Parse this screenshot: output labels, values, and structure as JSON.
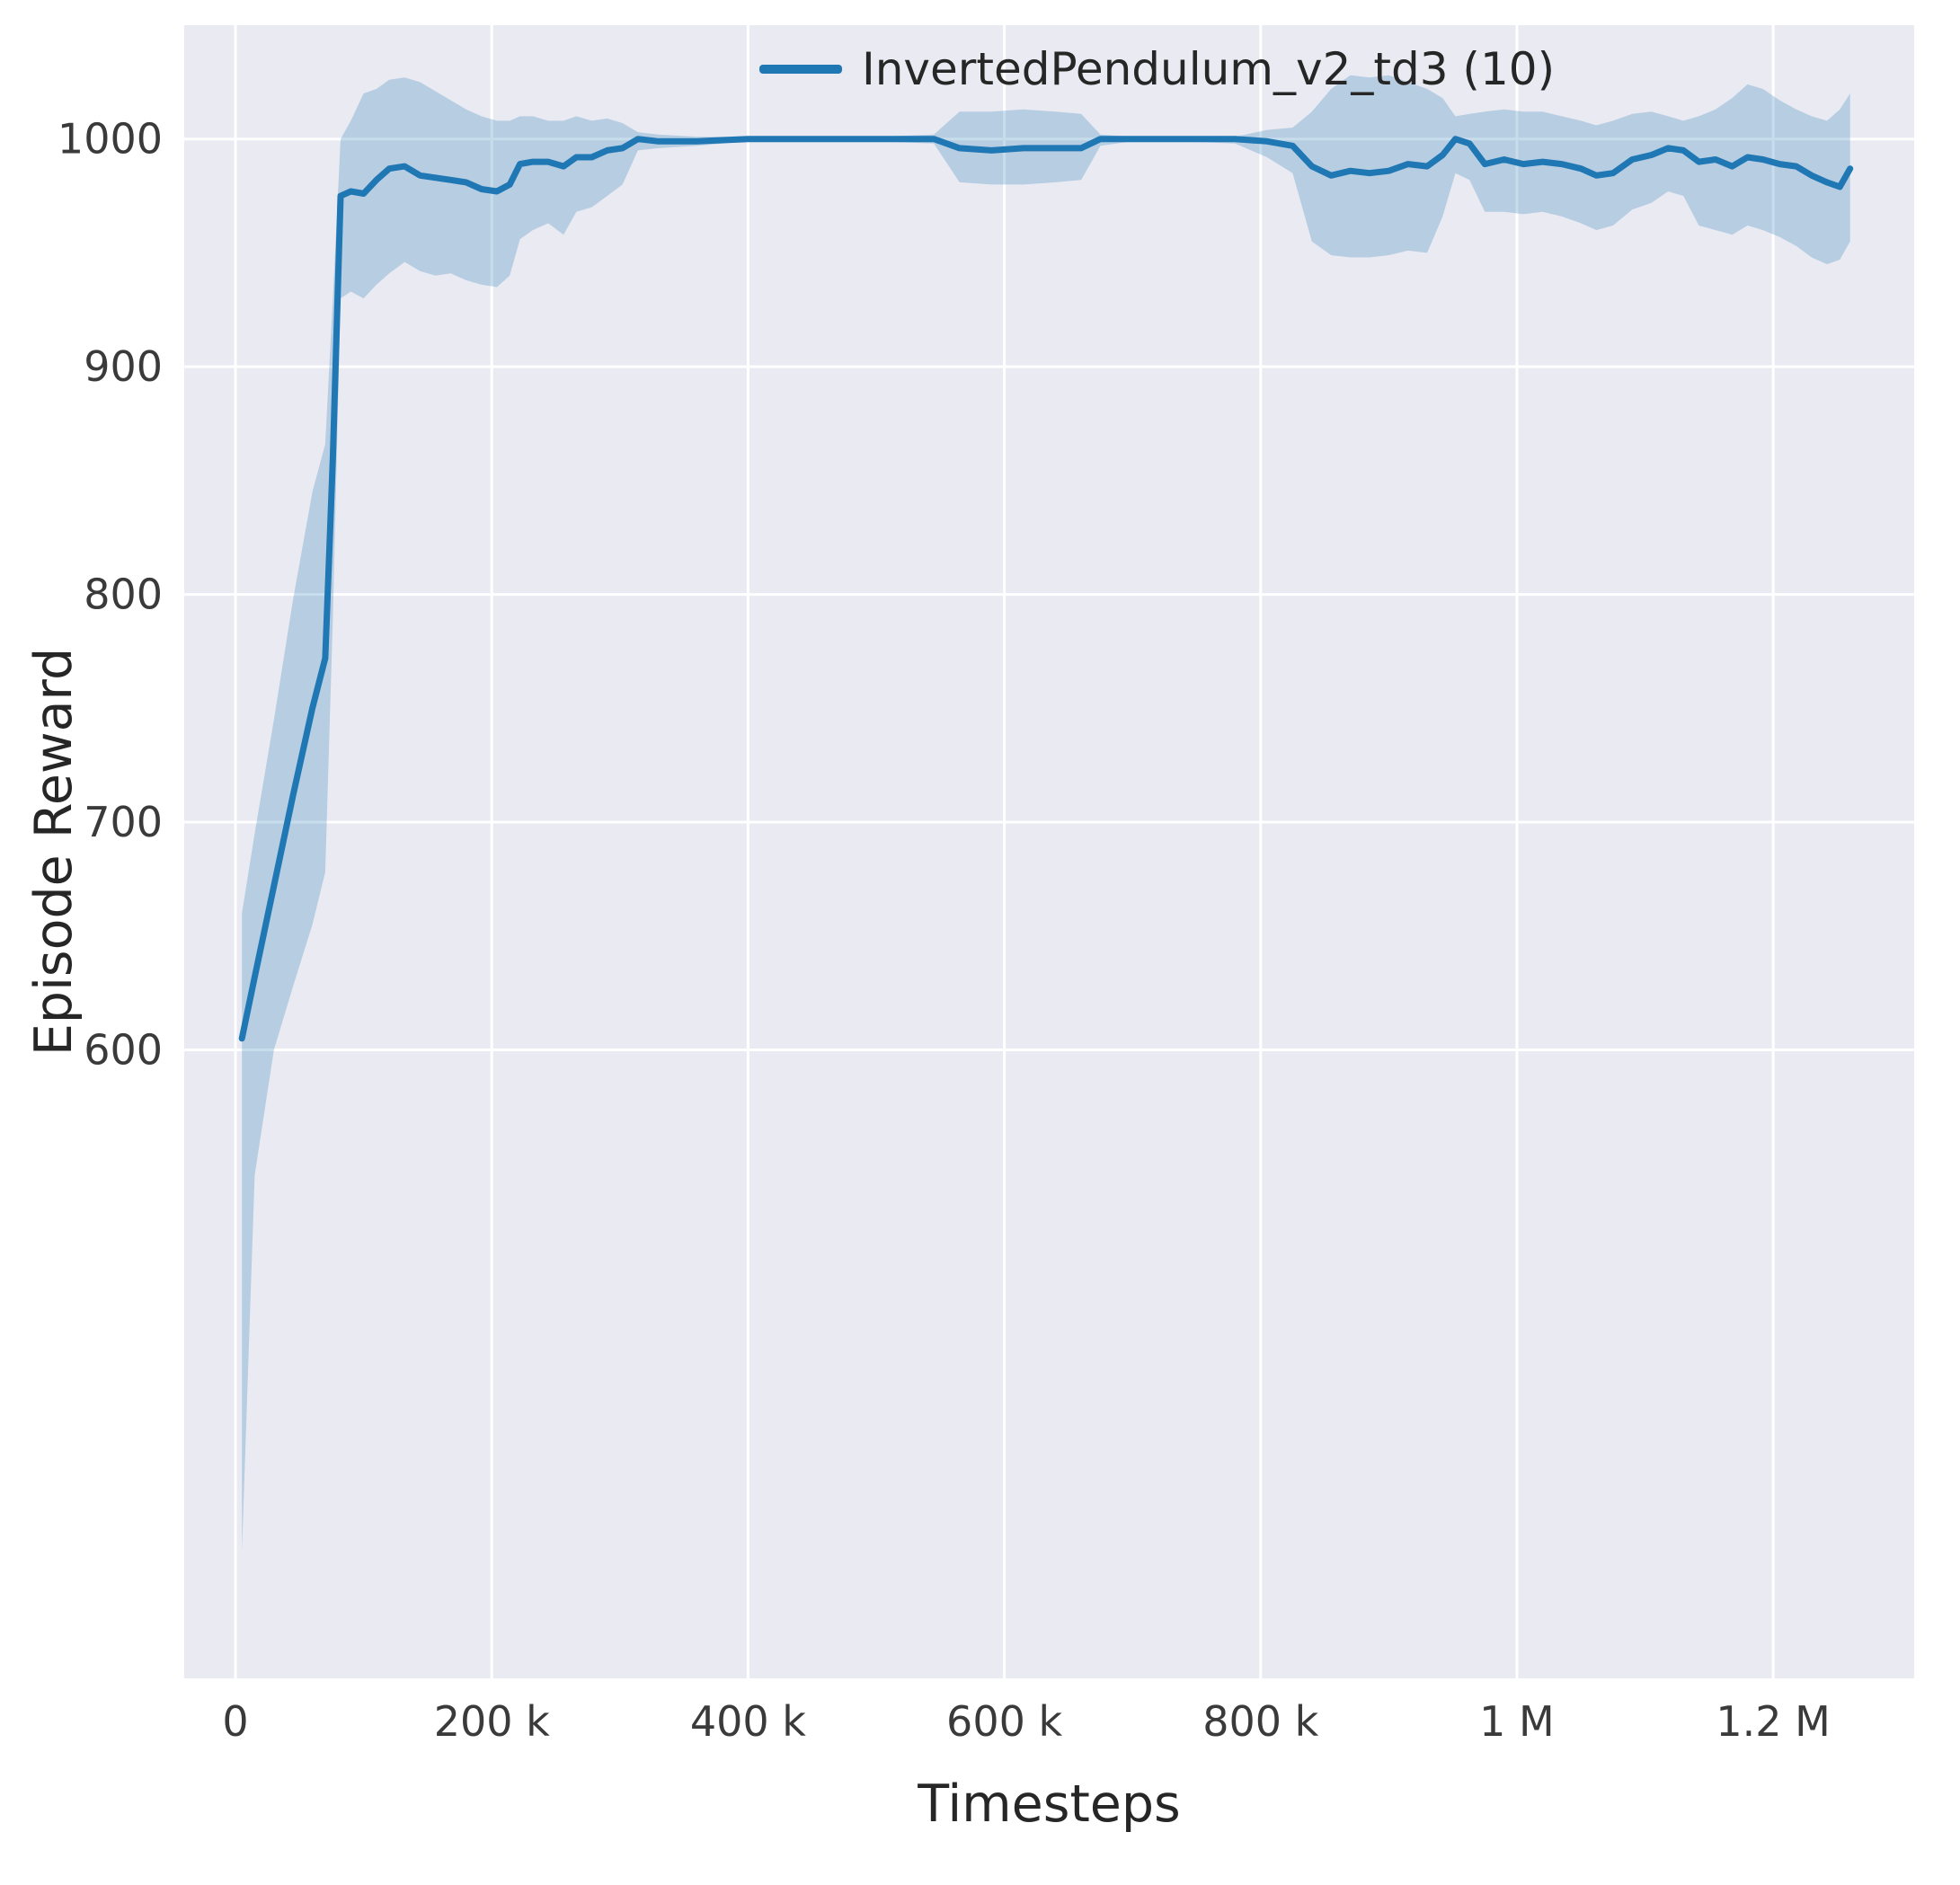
{
  "figure": {
    "background": "#ffffff"
  },
  "chart_data": {
    "type": "line",
    "title": "",
    "xlabel": "Timesteps",
    "ylabel": "Episode Reward",
    "grid": "on",
    "legend_position": "upper-right-inside",
    "colors": {
      "plot_background": "#eaeaf2",
      "grid": "#ffffff",
      "series": "#1f77b4",
      "band_opacity": 0.25,
      "axis_text": "#262626",
      "tick_text": "#3a3a3a"
    },
    "xlim": [
      -40000,
      1310000
    ],
    "ylim": [
      324,
      1050
    ],
    "x_ticks": [
      {
        "value": 0,
        "label": "0"
      },
      {
        "value": 200000,
        "label": "200 k"
      },
      {
        "value": 400000,
        "label": "400 k"
      },
      {
        "value": 600000,
        "label": "600 k"
      },
      {
        "value": 800000,
        "label": "800 k"
      },
      {
        "value": 1000000,
        "label": "1 M"
      },
      {
        "value": 1200000,
        "label": "1.2 M"
      }
    ],
    "y_ticks": [
      {
        "value": 600,
        "label": "600"
      },
      {
        "value": 700,
        "label": "700"
      },
      {
        "value": 800,
        "label": "800"
      },
      {
        "value": 900,
        "label": "900"
      },
      {
        "value": 1000,
        "label": "1000"
      }
    ],
    "series": [
      {
        "name": "InvertedPendulum_v2_td3 (10)",
        "color": "#1f77b4",
        "x": [
          5000,
          15000,
          30000,
          45000,
          60000,
          70000,
          76000,
          82000,
          90000,
          100000,
          110000,
          120000,
          132000,
          144000,
          156000,
          168000,
          180000,
          192000,
          204000,
          214000,
          222000,
          232000,
          244000,
          256000,
          266000,
          278000,
          290000,
          302000,
          314000,
          330000,
          360000,
          400000,
          450000,
          500000,
          545000,
          565000,
          590000,
          615000,
          640000,
          660000,
          675000,
          700000,
          740000,
          780000,
          805000,
          825000,
          840000,
          855000,
          870000,
          885000,
          900000,
          915000,
          930000,
          942000,
          952000,
          963000,
          975000,
          990000,
          1005000,
          1020000,
          1035000,
          1050000,
          1062000,
          1075000,
          1090000,
          1105000,
          1118000,
          1130000,
          1142000,
          1155000,
          1168000,
          1180000,
          1192000,
          1205000,
          1218000,
          1230000,
          1242000,
          1252000,
          1260000
        ],
        "mean": [
          605,
          632,
          672,
          712,
          750,
          772,
          860,
          975,
          977,
          976,
          982,
          987,
          988,
          984,
          983,
          982,
          981,
          978,
          977,
          980,
          989,
          990,
          990,
          988,
          992,
          992,
          995,
          996,
          1000,
          999,
          999,
          1000,
          1000,
          1000,
          1000,
          996,
          995,
          996,
          996,
          996,
          1000,
          1000,
          1000,
          1000,
          999,
          997,
          988,
          984,
          986,
          985,
          986,
          989,
          988,
          993,
          1000,
          998,
          989,
          991,
          989,
          990,
          989,
          987,
          984,
          985,
          991,
          993,
          996,
          995,
          990,
          991,
          988,
          992,
          991,
          989,
          988,
          984,
          981,
          979,
          987
        ],
        "lower": [
          380,
          545,
          600,
          628,
          655,
          678,
          790,
          930,
          933,
          930,
          936,
          941,
          946,
          942,
          940,
          941,
          938,
          936,
          935,
          940,
          956,
          960,
          963,
          958,
          968,
          970,
          975,
          980,
          995,
          996,
          997,
          999,
          999,
          999,
          998,
          981,
          980,
          980,
          981,
          982,
          997,
          999,
          999,
          998,
          992,
          985,
          955,
          949,
          948,
          948,
          949,
          951,
          950,
          966,
          985,
          982,
          968,
          968,
          967,
          968,
          966,
          963,
          960,
          962,
          969,
          972,
          977,
          975,
          962,
          960,
          958,
          962,
          960,
          957,
          953,
          948,
          945,
          947,
          955
        ],
        "upper": [
          660,
          695,
          745,
          798,
          845,
          866,
          930,
          1000,
          1008,
          1020,
          1022,
          1026,
          1027,
          1025,
          1021,
          1017,
          1013,
          1010,
          1008,
          1008,
          1010,
          1010,
          1008,
          1008,
          1010,
          1008,
          1009,
          1007,
          1003,
          1002,
          1001,
          1001,
          1001,
          1001,
          1002,
          1012,
          1012,
          1013,
          1012,
          1011,
          1002,
          1001,
          1001,
          1001,
          1004,
          1005,
          1012,
          1022,
          1028,
          1027,
          1028,
          1025,
          1022,
          1018,
          1010,
          1011,
          1012,
          1013,
          1012,
          1012,
          1010,
          1008,
          1006,
          1008,
          1011,
          1012,
          1010,
          1008,
          1010,
          1013,
          1018,
          1024,
          1022,
          1017,
          1013,
          1010,
          1008,
          1013,
          1020
        ]
      }
    ]
  }
}
